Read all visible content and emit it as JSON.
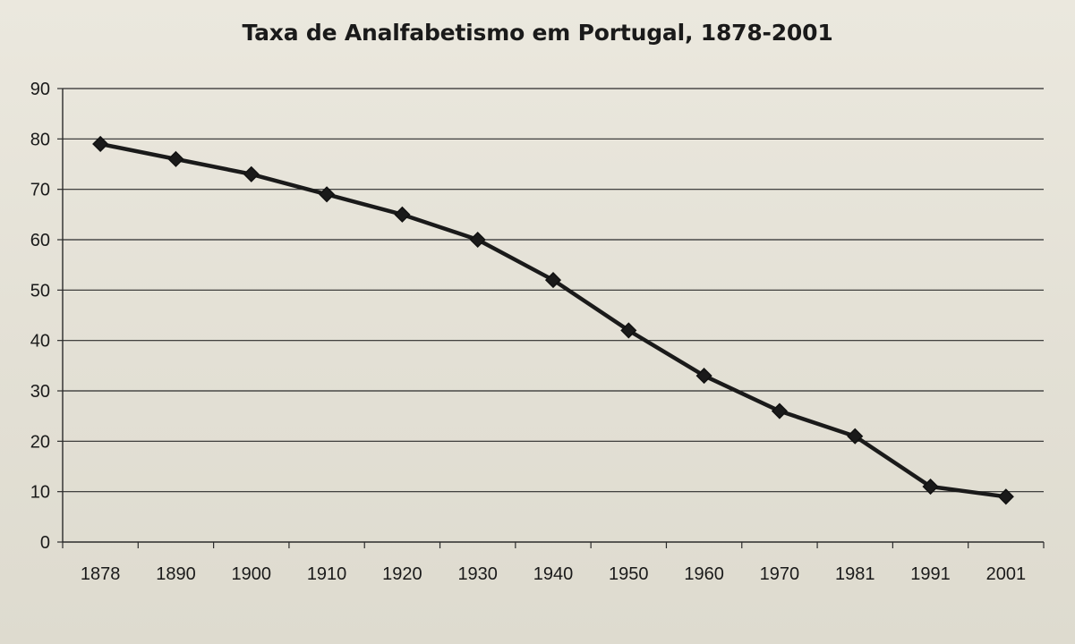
{
  "chart_data": {
    "type": "line",
    "title": "Taxa de Analfabetismo em Portugal, 1878-2001",
    "xlabel": "",
    "ylabel": "",
    "categories": [
      "1878",
      "1890",
      "1900",
      "1910",
      "1920",
      "1930",
      "1940",
      "1950",
      "1960",
      "1970",
      "1981",
      "1991",
      "2001"
    ],
    "series": [
      {
        "values": [
          79,
          76,
          73,
          69,
          65,
          60,
          52,
          42,
          33,
          26,
          21,
          11,
          9
        ],
        "color": "#1a1a1a",
        "marker": "diamond"
      }
    ],
    "ylim": [
      0,
      90
    ],
    "yticks": [
      "0",
      "10",
      "20",
      "30",
      "40",
      "50",
      "60",
      "70",
      "80",
      "90"
    ],
    "grid": true,
    "legend": "none"
  }
}
